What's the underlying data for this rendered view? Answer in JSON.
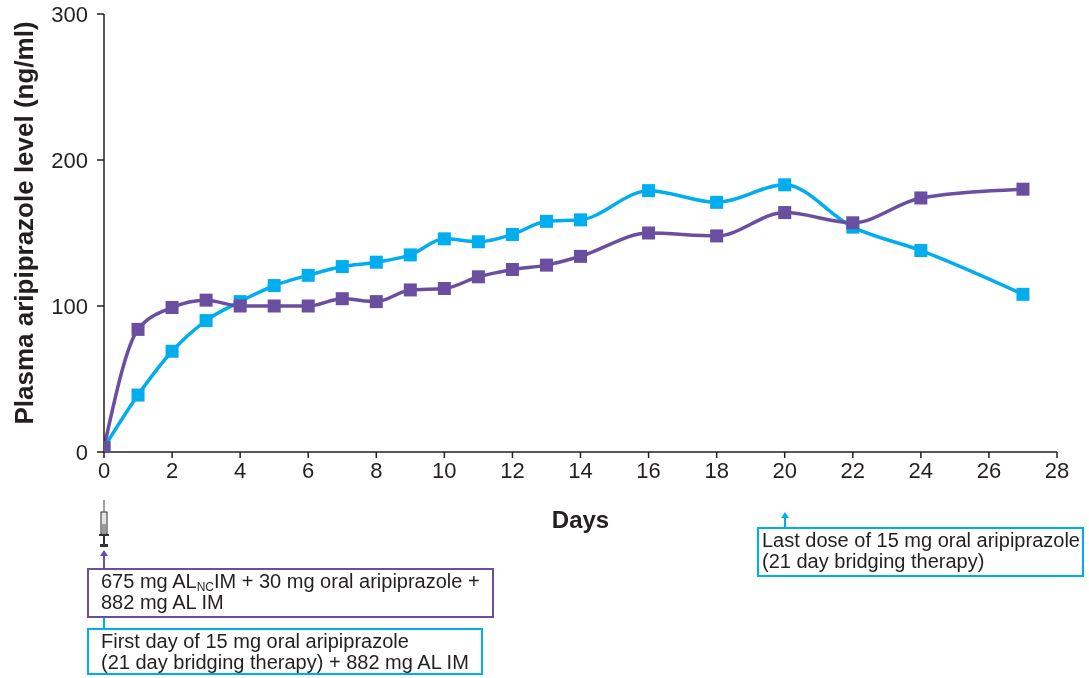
{
  "chart_data": {
    "type": "line",
    "xlabel": "Days",
    "ylabel": "Plasma aripiprazole level (ng/ml)",
    "x": [
      0,
      1,
      2,
      3,
      4,
      5,
      6,
      7,
      8,
      9,
      10,
      11,
      12,
      13,
      14,
      16,
      18,
      20,
      22,
      24,
      27
    ],
    "series": [
      {
        "color": "#00aeef",
        "values": [
          3,
          39,
          69,
          90,
          103,
          114,
          121,
          127,
          130,
          135,
          146,
          144,
          149,
          158,
          159,
          179,
          171,
          183,
          154,
          138,
          108
        ]
      },
      {
        "color": "#6a4ea0",
        "values": [
          3,
          84,
          99,
          104,
          100,
          100,
          100,
          105,
          103,
          111,
          112,
          120,
          125,
          128,
          134,
          150,
          148,
          164,
          157,
          174,
          180
        ]
      }
    ],
    "xlim": [
      0,
      28
    ],
    "xticks": [
      0,
      2,
      4,
      6,
      8,
      10,
      12,
      14,
      16,
      18,
      20,
      22,
      24,
      26,
      28
    ],
    "ylim": [
      0,
      300
    ],
    "yticks": [
      0,
      100,
      200,
      300
    ],
    "marker": "square",
    "line_style": "solid",
    "annotations": [
      "675 mg AL$_{NC}$IM + 30 mg oral aripiprazole +\n882 mg AL IM",
      "First day of 15 mg oral aripiprazole\n(21 day bridging therapy) + 882 mg AL IM",
      "Last dose of 15 mg oral aripiprazole\n(21 day bridging therapy)"
    ]
  }
}
